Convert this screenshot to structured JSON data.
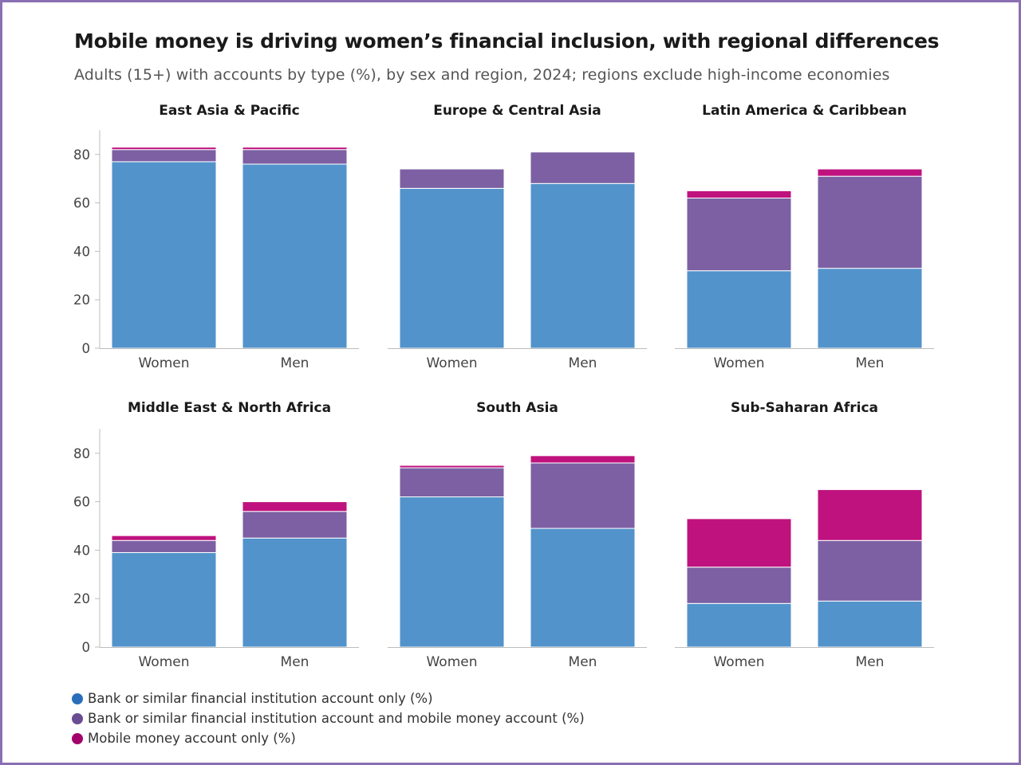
{
  "header": {
    "title": "Mobile money is driving women’s financial inclusion, with regional differences",
    "subtitle": "Adults (15+) with accounts by type (%), by sex and region, 2024; regions exclude high-income economies"
  },
  "colors": {
    "bank_only": "#5393cb",
    "bank_and_mobile": "#7c60a3",
    "mobile_only": "#bf127e",
    "legend_bank_only": "#2a6ebb",
    "legend_bank_and_mobile": "#6a4c93",
    "legend_mobile_only": "#a3006b"
  },
  "legend": [
    {
      "label": "Bank or similar financial institution account only (%)"
    },
    {
      "label": "Bank or similar financial institution account and mobile money account (%)"
    },
    {
      "label": "Mobile money account only (%)"
    }
  ],
  "chart_data": [
    {
      "type": "bar",
      "stacked": true,
      "title": "East Asia & Pacific",
      "categories": [
        "Women",
        "Men"
      ],
      "ylim": [
        0,
        90
      ],
      "yticks": [
        0,
        20,
        40,
        60,
        80
      ],
      "series": [
        {
          "name": "Bank or similar financial institution account only (%)",
          "values": [
            77,
            76
          ]
        },
        {
          "name": "Bank or similar financial institution account and mobile money account (%)",
          "values": [
            5,
            6
          ]
        },
        {
          "name": "Mobile money account only (%)",
          "values": [
            1,
            1
          ]
        }
      ]
    },
    {
      "type": "bar",
      "stacked": true,
      "title": "Europe & Central Asia",
      "categories": [
        "Women",
        "Men"
      ],
      "ylim": [
        0,
        90
      ],
      "yticks": [
        0,
        20,
        40,
        60,
        80
      ],
      "series": [
        {
          "name": "Bank or similar financial institution account only (%)",
          "values": [
            66,
            68
          ]
        },
        {
          "name": "Bank or similar financial institution account and mobile money account (%)",
          "values": [
            8,
            13
          ]
        },
        {
          "name": "Mobile money account only (%)",
          "values": [
            0,
            0
          ]
        }
      ]
    },
    {
      "type": "bar",
      "stacked": true,
      "title": "Latin America & Caribbean",
      "categories": [
        "Women",
        "Men"
      ],
      "ylim": [
        0,
        90
      ],
      "yticks": [
        0,
        20,
        40,
        60,
        80
      ],
      "series": [
        {
          "name": "Bank or similar financial institution account only (%)",
          "values": [
            32,
            33
          ]
        },
        {
          "name": "Bank or similar financial institution account and mobile money account (%)",
          "values": [
            30,
            38
          ]
        },
        {
          "name": "Mobile money account only (%)",
          "values": [
            3,
            3
          ]
        }
      ]
    },
    {
      "type": "bar",
      "stacked": true,
      "title": "Middle East & North Africa",
      "categories": [
        "Women",
        "Men"
      ],
      "ylim": [
        0,
        90
      ],
      "yticks": [
        0,
        20,
        40,
        60,
        80
      ],
      "series": [
        {
          "name": "Bank or similar financial institution account only (%)",
          "values": [
            39,
            45
          ]
        },
        {
          "name": "Bank or similar financial institution account and mobile money account (%)",
          "values": [
            5,
            11
          ]
        },
        {
          "name": "Mobile money account only (%)",
          "values": [
            2,
            4
          ]
        }
      ]
    },
    {
      "type": "bar",
      "stacked": true,
      "title": "South Asia",
      "categories": [
        "Women",
        "Men"
      ],
      "ylim": [
        0,
        90
      ],
      "yticks": [
        0,
        20,
        40,
        60,
        80
      ],
      "series": [
        {
          "name": "Bank or similar financial institution account only (%)",
          "values": [
            62,
            49
          ]
        },
        {
          "name": "Bank or similar financial institution account and mobile money account (%)",
          "values": [
            12,
            27
          ]
        },
        {
          "name": "Mobile money account only (%)",
          "values": [
            1,
            3
          ]
        }
      ]
    },
    {
      "type": "bar",
      "stacked": true,
      "title": "Sub-Saharan Africa",
      "categories": [
        "Women",
        "Men"
      ],
      "ylim": [
        0,
        90
      ],
      "yticks": [
        0,
        20,
        40,
        60,
        80
      ],
      "series": [
        {
          "name": "Bank or similar financial institution account only (%)",
          "values": [
            18,
            19
          ]
        },
        {
          "name": "Bank or similar financial institution account and mobile money account (%)",
          "values": [
            15,
            25
          ]
        },
        {
          "name": "Mobile money account only (%)",
          "values": [
            20,
            21
          ]
        }
      ]
    }
  ]
}
